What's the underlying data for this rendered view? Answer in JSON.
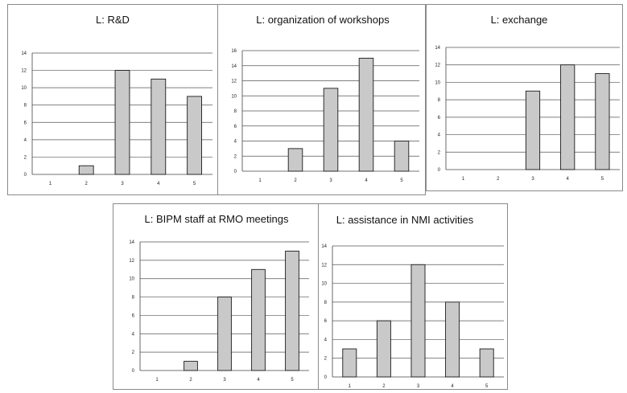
{
  "colors": {
    "bar_fill": "#c9c9c9",
    "bar_stroke": "#1a1a1a",
    "grid": "#555555",
    "axis": "#444444"
  },
  "chart_data": [
    {
      "type": "bar",
      "title": "L: R&D",
      "categories": [
        "1",
        "2",
        "3",
        "4",
        "5"
      ],
      "values": [
        0,
        1,
        12,
        11,
        9
      ],
      "ylim": [
        0,
        14
      ],
      "yticks": [
        "0",
        "2",
        "4",
        "6",
        "8",
        "10",
        "12",
        "14"
      ],
      "grid": true,
      "xlabel": "",
      "ylabel": ""
    },
    {
      "type": "bar",
      "title": "L: organization of workshops",
      "categories": [
        "1",
        "2",
        "3",
        "4",
        "5"
      ],
      "values": [
        0,
        3,
        11,
        15,
        4
      ],
      "ylim": [
        0,
        16
      ],
      "yticks": [
        "0",
        "2",
        "4",
        "6",
        "8",
        "10",
        "12",
        "14",
        "16"
      ],
      "grid": true,
      "xlabel": "",
      "ylabel": ""
    },
    {
      "type": "bar",
      "title": "L: exchange",
      "categories": [
        "1",
        "2",
        "3",
        "4",
        "5"
      ],
      "values": [
        0,
        0,
        9,
        12,
        11
      ],
      "ylim": [
        0,
        14
      ],
      "yticks": [
        "0",
        "2",
        "4",
        "6",
        "8",
        "10",
        "12",
        "14"
      ],
      "grid": true,
      "xlabel": "",
      "ylabel": ""
    },
    {
      "type": "bar",
      "title": "L: BIPM staff at RMO meetings",
      "categories": [
        "1",
        "2",
        "3",
        "4",
        "5"
      ],
      "values": [
        0,
        1,
        8,
        11,
        13
      ],
      "ylim": [
        0,
        14
      ],
      "yticks": [
        "0",
        "2",
        "4",
        "6",
        "8",
        "10",
        "12",
        "14"
      ],
      "grid": true,
      "xlabel": "",
      "ylabel": ""
    },
    {
      "type": "bar",
      "title": "L: assistance in  NMI activities",
      "categories": [
        "1",
        "2",
        "3",
        "4",
        "5"
      ],
      "values": [
        3,
        6,
        12,
        8,
        3
      ],
      "ylim": [
        0,
        14
      ],
      "yticks": [
        "0",
        "2",
        "4",
        "6",
        "8",
        "10",
        "12",
        "14"
      ],
      "grid": true,
      "xlabel": "",
      "ylabel": ""
    }
  ]
}
